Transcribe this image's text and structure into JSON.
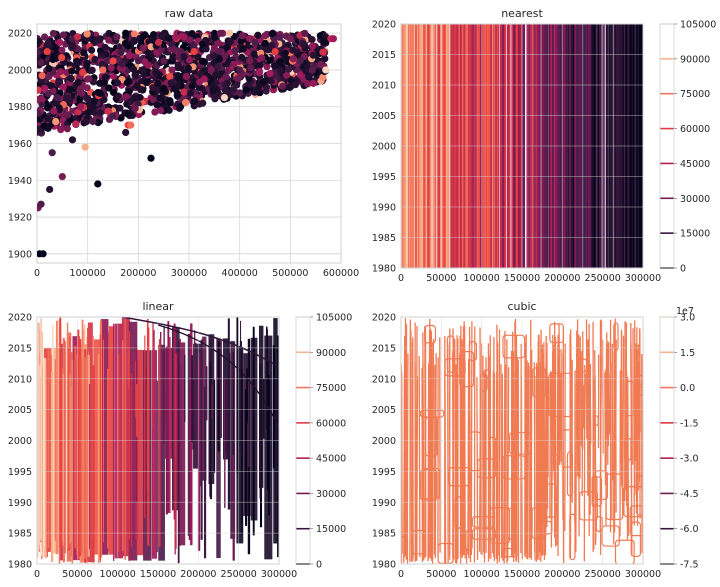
{
  "chart_data": [
    {
      "id": "raw",
      "type": "scatter",
      "title": "raw data",
      "xlim": [
        0,
        600000
      ],
      "ylim": [
        1895,
        2025
      ],
      "xticks": [
        0,
        100000,
        200000,
        300000,
        400000,
        500000,
        600000
      ],
      "yticks": [
        1900,
        1920,
        1940,
        1960,
        1980,
        2000,
        2020
      ],
      "grid": true,
      "points": [
        [
          5000,
          1900,
          0
        ],
        [
          12000,
          1900,
          0
        ],
        [
          2000,
          1925,
          0.3
        ],
        [
          8000,
          1927,
          0.2
        ],
        [
          25000,
          1935,
          0.1
        ],
        [
          50000,
          1942,
          0.3
        ],
        [
          120000,
          1938,
          0
        ],
        [
          225000,
          1952,
          0
        ],
        [
          175000,
          1966,
          0.1
        ],
        [
          95000,
          1958,
          0.85
        ],
        [
          180000,
          1970,
          0.6
        ],
        [
          185000,
          1970,
          0.7
        ],
        [
          290000,
          1988,
          0.5
        ],
        [
          370000,
          1985,
          0.95
        ],
        [
          265000,
          1993,
          0.1
        ],
        [
          150000,
          1975,
          0.2
        ],
        [
          60000,
          1968,
          0.3
        ],
        [
          30000,
          1955,
          0.2
        ],
        [
          70000,
          1962,
          0.1
        ],
        [
          110000,
          1972,
          0.2
        ],
        [
          250000,
          1990,
          0
        ],
        [
          330000,
          1995,
          0.4
        ],
        [
          400000,
          2000,
          0.2
        ],
        [
          420000,
          2005,
          0.3
        ],
        [
          480000,
          2000,
          0.1
        ],
        [
          520000,
          2005,
          0.2
        ],
        [
          545000,
          2008,
          0.1
        ],
        [
          560000,
          2003,
          0.3
        ],
        [
          570000,
          2000,
          0.95
        ],
        [
          580000,
          2017,
          0.5
        ],
        [
          585000,
          2017,
          0.4
        ],
        [
          470000,
          2010,
          0.6
        ],
        [
          500000,
          2017,
          0.3
        ],
        [
          380000,
          2020,
          0.9
        ],
        [
          290000,
          2018,
          0.4
        ],
        [
          175000,
          2020,
          0
        ],
        [
          240000,
          2015,
          0.5
        ],
        [
          20000,
          2010,
          0.6
        ],
        [
          45000,
          2015,
          0.4
        ],
        [
          80000,
          2018,
          0.5
        ],
        [
          15000,
          1990,
          0.4
        ],
        [
          40000,
          1985,
          0.2
        ],
        [
          100000,
          1995,
          0.3
        ],
        [
          130000,
          2000,
          0.7
        ],
        [
          200000,
          2005,
          0.2
        ],
        [
          310000,
          2010,
          0.6
        ],
        [
          350000,
          2012,
          0.3
        ],
        [
          430000,
          2015,
          0.2
        ],
        [
          460000,
          1998,
          0.4
        ],
        [
          510000,
          1992,
          0.1
        ]
      ],
      "bands": [
        {
          "x0": 0,
          "x1": 600000,
          "ymin0": 1975,
          "ymin1": 1995,
          "ymax": 2020
        }
      ]
    },
    {
      "id": "nearest",
      "type": "contour",
      "title": "nearest",
      "xlim": [
        0,
        300000
      ],
      "ylim": [
        1980,
        2020
      ],
      "xticks": [
        0,
        50000,
        100000,
        150000,
        200000,
        250000,
        300000
      ],
      "yticks": [
        1980,
        1985,
        1990,
        1995,
        2000,
        2005,
        2010,
        2015,
        2020
      ],
      "colorbar": {
        "ticks": [
          0,
          15000,
          30000,
          45000,
          60000,
          75000,
          90000,
          105000
        ],
        "labels": [
          "0",
          "15000",
          "30000",
          "45000",
          "60000",
          "75000",
          "90000",
          "105000"
        ],
        "offset_label": ""
      },
      "stripes": [
        0.9,
        0.85,
        0.7,
        0.95,
        0.8,
        0.6,
        0.88,
        0.75,
        0.92,
        0.5,
        0.82,
        0.65,
        0.78,
        0.9,
        0.55,
        0.72,
        0.85,
        0.6,
        0.45,
        0.7,
        0.8,
        0.5,
        0.62,
        0.4,
        0.75,
        0.55,
        0.3,
        0.68,
        0.45,
        0.58,
        0.35,
        0.5,
        0.25,
        0.42,
        0.6,
        0.3,
        0.2,
        0.48,
        0.35,
        0.15,
        0.4,
        0.28,
        0.1,
        0.32,
        0.22,
        0.38,
        0.12,
        0.25,
        0.18,
        0.08,
        0.3,
        0.2,
        0.1,
        0.22,
        0.15,
        0.05,
        0.18,
        0.1,
        0.2,
        0.12,
        0.08,
        0.15,
        0.05,
        0.1
      ]
    },
    {
      "id": "linear",
      "type": "contour",
      "title": "linear",
      "xlim": [
        0,
        300000
      ],
      "ylim": [
        1980,
        2020
      ],
      "xticks": [
        0,
        50000,
        100000,
        150000,
        200000,
        250000,
        300000
      ],
      "yticks": [
        1980,
        1985,
        1990,
        1995,
        2000,
        2005,
        2010,
        2015,
        2020
      ],
      "colorbar": {
        "ticks": [
          0,
          15000,
          30000,
          45000,
          60000,
          75000,
          90000,
          105000
        ],
        "labels": [
          "0",
          "15000",
          "30000",
          "45000",
          "60000",
          "75000",
          "90000",
          "105000"
        ],
        "offset_label": ""
      },
      "stripes": [
        0.8,
        0.6,
        0.85,
        0.5,
        0.7,
        0.4,
        0.75,
        0.55,
        0.65,
        0.35,
        0.6,
        0.45,
        0.5,
        0.3,
        0.55,
        0.25,
        0.4,
        0.2,
        0.35,
        0.15,
        0.3,
        0.2,
        0.12,
        0.25,
        0.1,
        0.18,
        0.08,
        0.15,
        0.05,
        0.12,
        0.1,
        0.06,
        0.08,
        0.05
      ]
    },
    {
      "id": "cubic",
      "type": "contour",
      "title": "cubic",
      "xlim": [
        0,
        300000
      ],
      "ylim": [
        1980,
        2020
      ],
      "xticks": [
        0,
        50000,
        100000,
        150000,
        200000,
        250000,
        300000
      ],
      "yticks": [
        1980,
        1985,
        1990,
        1995,
        2000,
        2005,
        2010,
        2015,
        2020
      ],
      "colorbar": {
        "ticks": [
          -7.5,
          -6.0,
          -4.5,
          -3.0,
          -1.5,
          0.0,
          1.5,
          3.0
        ],
        "labels": [
          "-7.5",
          "-6.0",
          "-4.5",
          "-3.0",
          "-1.5",
          "0.0",
          "1.5",
          "3.0"
        ],
        "offset_label": "1e7"
      },
      "stripes": []
    }
  ],
  "colors": {
    "cmap": [
      "#03051a",
      "#4c1d4b",
      "#a11a5b",
      "#e83f3f",
      "#f69c73",
      "#faebdd"
    ],
    "cubic_line": "#f07a52"
  }
}
